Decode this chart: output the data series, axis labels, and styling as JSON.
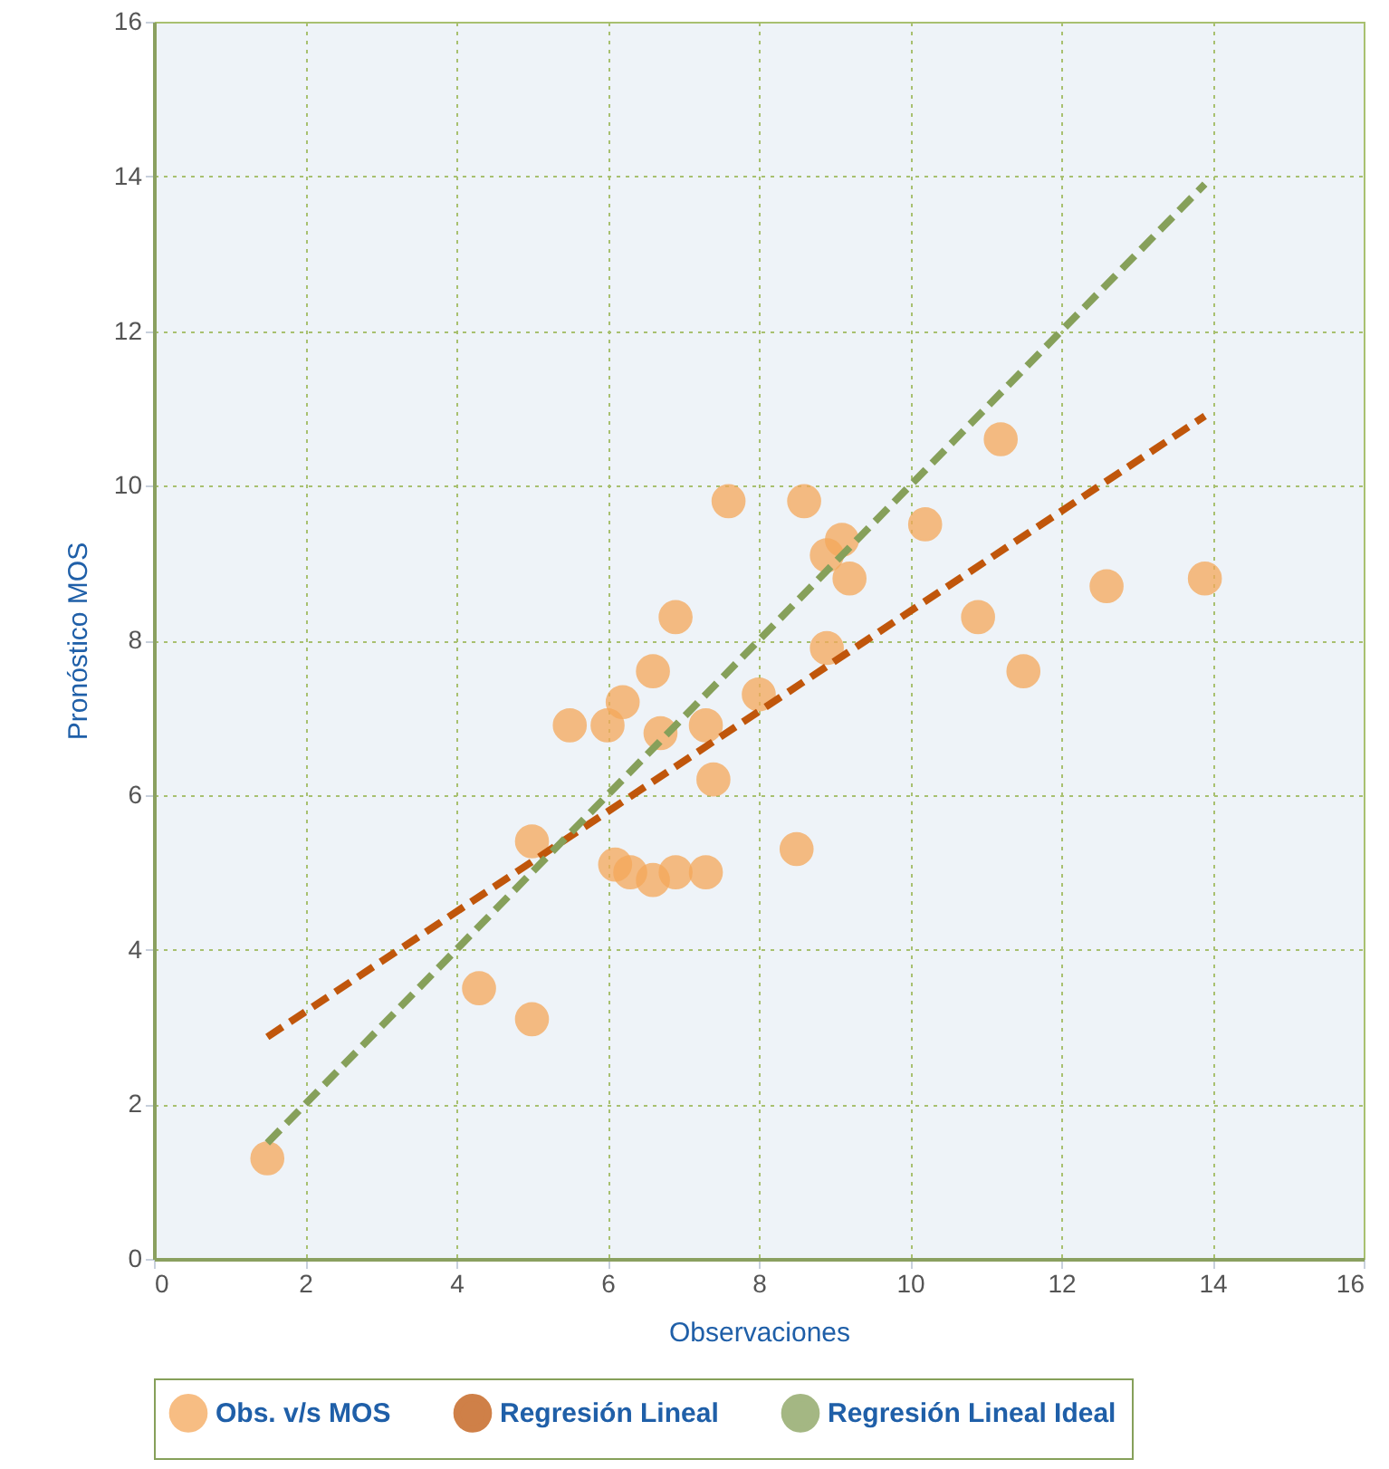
{
  "chart_data": {
    "type": "scatter",
    "xlabel": "Observaciones",
    "ylabel": "Pronóstico MOS",
    "xlim": [
      0,
      16
    ],
    "ylim": [
      0,
      16
    ],
    "xticks": [
      0,
      2,
      4,
      6,
      8,
      10,
      12,
      14,
      16
    ],
    "yticks": [
      0,
      2,
      4,
      6,
      8,
      10,
      12,
      14,
      16
    ],
    "grid": true,
    "legend": "bottom",
    "series": [
      {
        "name": "Obs. v/s MOS",
        "marker": "circle",
        "color": "#f5a85a",
        "x": [
          1.5,
          4.3,
          5.0,
          5.0,
          5.5,
          6.0,
          6.2,
          6.6,
          6.9,
          6.7,
          7.3,
          7.4,
          8.0,
          7.6,
          8.6,
          6.1,
          6.3,
          6.6,
          6.9,
          7.3,
          8.5,
          8.9,
          8.9,
          9.1,
          9.2,
          11.2,
          10.2,
          12.6,
          13.9,
          10.9,
          11.5
        ],
        "values": [
          1.3,
          3.5,
          3.1,
          5.4,
          6.9,
          6.9,
          7.2,
          7.6,
          8.3,
          6.8,
          6.9,
          6.2,
          7.3,
          9.8,
          9.8,
          5.1,
          5.0,
          4.9,
          5.0,
          5.0,
          5.3,
          7.9,
          9.1,
          9.3,
          8.8,
          10.6,
          9.5,
          8.7,
          8.8,
          8.3,
          7.6
        ]
      },
      {
        "name": "Regresión Lineal",
        "type": "line",
        "line_style": "dashed",
        "color": "#c0560b",
        "x": [
          1.5,
          13.9
        ],
        "values": [
          2.87,
          10.9
        ]
      },
      {
        "name": "Regresión Lineal Ideal",
        "type": "line",
        "line_style": "dashed",
        "color": "#86a05a",
        "x": [
          1.5,
          13.9
        ],
        "values": [
          1.5,
          13.9
        ]
      }
    ]
  }
}
